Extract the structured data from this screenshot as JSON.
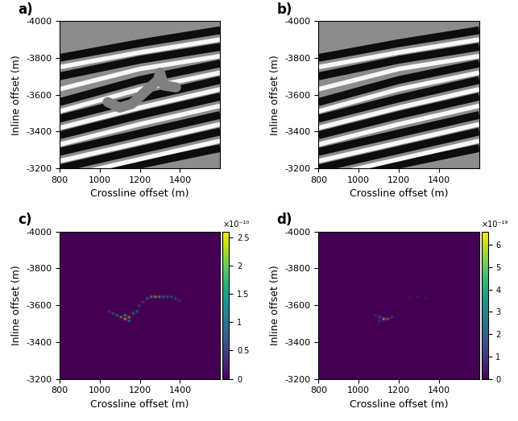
{
  "chart_data": [
    {
      "type": "seismic",
      "panel_label": "a)",
      "xlabel": "Crossline offset (m)",
      "ylabel": "Inline offset (m)",
      "xlim": [
        800,
        1600
      ],
      "ylim": [
        -3200,
        -4000
      ],
      "xticks": [
        800,
        1000,
        1200,
        1400
      ],
      "yticks": [
        -4000,
        -3800,
        -3600,
        -3400,
        -3200
      ],
      "reflectors": {
        "dark": [
          {
            "x": [
              800,
              1200,
              1600
            ],
            "y": [
              -3800,
              -3880,
              -3950
            ]
          },
          {
            "x": [
              800,
              1200,
              1600
            ],
            "y": [
              -3700,
              -3790,
              -3860
            ]
          },
          {
            "x": [
              800,
              1200,
              1600
            ],
            "y": [
              -3560,
              -3680,
              -3770
            ]
          },
          {
            "x": [
              800,
              1200,
              1600
            ],
            "y": [
              -3470,
              -3580,
              -3680
            ]
          },
          {
            "x": [
              800,
              1200,
              1600
            ],
            "y": [
              -3380,
              -3490,
              -3590
            ]
          },
          {
            "x": [
              800,
              1200,
              1600
            ],
            "y": [
              -3290,
              -3390,
              -3490
            ]
          },
          {
            "x": [
              800,
              1200,
              1600
            ],
            "y": [
              -3200,
              -3300,
              -3400
            ]
          },
          {
            "x": [
              800,
              1200,
              1600
            ],
            "y": [
              -3120,
              -3220,
              -3310
            ]
          }
        ],
        "light": [
          {
            "x": [
              800,
              1200,
              1600
            ],
            "y": [
              -3750,
              -3830,
              -3900
            ]
          },
          {
            "x": [
              800,
              1200,
              1600
            ],
            "y": [
              -3630,
              -3740,
              -3810
            ]
          },
          {
            "x": [
              800,
              1200,
              1600
            ],
            "y": [
              -3510,
              -3630,
              -3720
            ]
          },
          {
            "x": [
              800,
              1200,
              1600
            ],
            "y": [
              -3420,
              -3530,
              -3630
            ]
          },
          {
            "x": [
              800,
              1200,
              1600
            ],
            "y": [
              -3330,
              -3440,
              -3540
            ]
          },
          {
            "x": [
              800,
              1200,
              1600
            ],
            "y": [
              -3240,
              -3340,
              -3440
            ]
          },
          {
            "x": [
              800,
              1200,
              1600
            ],
            "y": [
              -3150,
              -3250,
              -3350
            ]
          }
        ]
      },
      "overlay": {
        "x": [
          1040,
          1100,
          1160,
          1200,
          1250,
          1290,
          1300,
          1320,
          1380
        ],
        "y": [
          -3560,
          -3530,
          -3550,
          -3590,
          -3640,
          -3680,
          -3720,
          -3650,
          -3640
        ]
      }
    },
    {
      "type": "seismic",
      "panel_label": "b)",
      "xlabel": "Crossline offset (m)",
      "ylabel": "Inline offset (m)",
      "xlim": [
        800,
        1600
      ],
      "ylim": [
        -3200,
        -4000
      ],
      "xticks": [
        800,
        1000,
        1200,
        1400
      ],
      "yticks": [
        -4000,
        -3800,
        -3600,
        -3400,
        -3200
      ],
      "reflectors": {
        "dark": [
          {
            "x": [
              800,
              1200,
              1600
            ],
            "y": [
              -3800,
              -3880,
              -3950
            ]
          },
          {
            "x": [
              800,
              1200,
              1600
            ],
            "y": [
              -3700,
              -3790,
              -3860
            ]
          },
          {
            "x": [
              800,
              1200,
              1600
            ],
            "y": [
              -3560,
              -3680,
              -3770
            ]
          },
          {
            "x": [
              800,
              1200,
              1600
            ],
            "y": [
              -3470,
              -3580,
              -3680
            ]
          },
          {
            "x": [
              800,
              1200,
              1600
            ],
            "y": [
              -3380,
              -3490,
              -3590
            ]
          },
          {
            "x": [
              800,
              1200,
              1600
            ],
            "y": [
              -3290,
              -3390,
              -3490
            ]
          },
          {
            "x": [
              800,
              1200,
              1600
            ],
            "y": [
              -3200,
              -3300,
              -3400
            ]
          },
          {
            "x": [
              800,
              1200,
              1600
            ],
            "y": [
              -3120,
              -3220,
              -3310
            ]
          }
        ],
        "light": [
          {
            "x": [
              800,
              1200,
              1600
            ],
            "y": [
              -3750,
              -3830,
              -3900
            ]
          },
          {
            "x": [
              800,
              1200,
              1600
            ],
            "y": [
              -3630,
              -3740,
              -3810
            ]
          },
          {
            "x": [
              800,
              1200,
              1600
            ],
            "y": [
              -3510,
              -3630,
              -3720
            ]
          },
          {
            "x": [
              800,
              1200,
              1600
            ],
            "y": [
              -3420,
              -3530,
              -3630
            ]
          },
          {
            "x": [
              800,
              1200,
              1600
            ],
            "y": [
              -3330,
              -3440,
              -3540
            ]
          },
          {
            "x": [
              800,
              1200,
              1600
            ],
            "y": [
              -3240,
              -3340,
              -3440
            ]
          },
          {
            "x": [
              800,
              1200,
              1600
            ],
            "y": [
              -3150,
              -3250,
              -3350
            ]
          }
        ]
      }
    },
    {
      "type": "heatmap",
      "panel_label": "c)",
      "xlabel": "Crossline offset (m)",
      "ylabel": "Inline offset (m)",
      "xlim": [
        800,
        1600
      ],
      "ylim": [
        -3200,
        -4000
      ],
      "xticks": [
        800,
        1000,
        1200,
        1400
      ],
      "yticks": [
        -4000,
        -3800,
        -3600,
        -3400,
        -3200
      ],
      "cells": [
        [
          1040,
          -3560,
          8e-11
        ],
        [
          1060,
          -3550,
          1e-10
        ],
        [
          1080,
          -3540,
          1.4e-10
        ],
        [
          1100,
          -3530,
          2e-10
        ],
        [
          1120,
          -3520,
          2.5e-10
        ],
        [
          1140,
          -3530,
          2.2e-10
        ],
        [
          1160,
          -3550,
          1.6e-10
        ],
        [
          1180,
          -3560,
          1.4e-10
        ],
        [
          1200,
          -3590,
          1e-10
        ],
        [
          1220,
          -3620,
          8e-11
        ],
        [
          1240,
          -3640,
          1.2e-10
        ],
        [
          1260,
          -3650,
          1.8e-10
        ],
        [
          1280,
          -3650,
          2.3e-10
        ],
        [
          1300,
          -3650,
          2e-10
        ],
        [
          1320,
          -3650,
          1.6e-10
        ],
        [
          1340,
          -3650,
          1.3e-10
        ],
        [
          1360,
          -3650,
          1e-10
        ],
        [
          1380,
          -3640,
          9e-11
        ],
        [
          1400,
          -3630,
          6e-11
        ],
        [
          1120,
          -3540,
          1.8e-10
        ],
        [
          1140,
          -3510,
          1.5e-10
        ]
      ],
      "colorbar": {
        "range": [
          0,
          2.6e-10
        ],
        "ticks": [
          0,
          {
            "value": 5e-11,
            "label": "0.5"
          },
          {
            "value": 1e-10,
            "label": "1"
          },
          {
            "value": 1.5e-10,
            "label": "1.5"
          },
          {
            "value": 2e-10,
            "label": "2"
          },
          {
            "value": 2.5e-10,
            "label": "2.5"
          }
        ],
        "scale_label": "×10⁻¹⁰"
      }
    },
    {
      "type": "heatmap",
      "panel_label": "d)",
      "xlabel": "Crossline offset (m)",
      "ylabel": "Inline offset (m)",
      "xlim": [
        800,
        1600
      ],
      "ylim": [
        -3200,
        -4000
      ],
      "xticks": [
        800,
        1000,
        1200,
        1400
      ],
      "yticks": [
        -4000,
        -3800,
        -3600,
        -3400,
        -3200
      ],
      "cells": [
        [
          1080,
          -3540,
          1e-19
        ],
        [
          1100,
          -3530,
          3e-19
        ],
        [
          1120,
          -3520,
          6.3e-19
        ],
        [
          1140,
          -3520,
          4.5e-19
        ],
        [
          1160,
          -3530,
          2e-19
        ],
        [
          1100,
          -3510,
          1.5e-19
        ],
        [
          1260,
          -3650,
          4e-20
        ],
        [
          1300,
          -3650,
          6e-20
        ],
        [
          1340,
          -3640,
          5e-20
        ],
        [
          1380,
          -3640,
          3e-20
        ]
      ],
      "colorbar": {
        "range": [
          0,
          6.6e-19
        ],
        "ticks": [
          0,
          {
            "value": 1e-19,
            "label": "1"
          },
          {
            "value": 2e-19,
            "label": "2"
          },
          {
            "value": 3e-19,
            "label": "3"
          },
          {
            "value": 4e-19,
            "label": "4"
          },
          {
            "value": 5e-19,
            "label": "5"
          },
          {
            "value": 6e-19,
            "label": "6"
          }
        ],
        "scale_label": "×10⁻¹⁹"
      }
    }
  ]
}
